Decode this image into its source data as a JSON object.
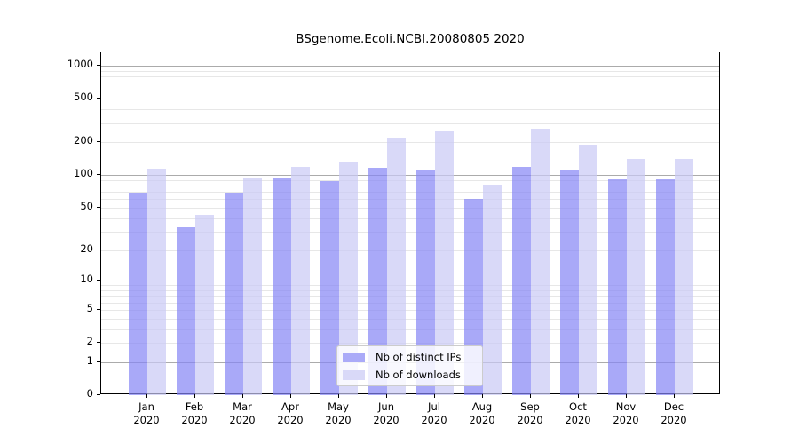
{
  "title": "BSgenome.Ecoli.NCBI.20080805 2020",
  "chart_data": {
    "type": "bar",
    "categories": [
      "Jan",
      "Feb",
      "Mar",
      "Apr",
      "May",
      "Jun",
      "Jul",
      "Aug",
      "Sep",
      "Oct",
      "Nov",
      "Dec"
    ],
    "year": "2020",
    "series": [
      {
        "name": "Nb of distinct IPs",
        "color": "rgba(132,132,245,0.7)",
        "legend_color": "#aaaaf8",
        "values": [
          69,
          33,
          69,
          95,
          88,
          118,
          113,
          60,
          120,
          110,
          92,
          92
        ]
      },
      {
        "name": "Nb of downloads",
        "color": "rgba(201,201,245,0.7)",
        "legend_color": "#d9d9f8",
        "values": [
          114,
          43,
          96,
          120,
          134,
          222,
          257,
          82,
          268,
          191,
          140,
          142
        ]
      }
    ],
    "yscale": "log10(value+1)",
    "yticks": [
      0,
      1,
      2,
      5,
      10,
      20,
      50,
      100,
      200,
      500,
      1000
    ],
    "ylim": [
      0,
      1330
    ],
    "major_gridlines": [
      1,
      10,
      100,
      1000
    ],
    "minor_gridlines": [
      2,
      3,
      4,
      5,
      6,
      7,
      8,
      9,
      20,
      30,
      40,
      50,
      60,
      70,
      80,
      90,
      200,
      300,
      400,
      500,
      600,
      700,
      800,
      900
    ],
    "grid_major_color": "#ababab",
    "grid_minor_color": "#e7e7e7",
    "legend_position": "lower center",
    "legend": {
      "items": [
        "Nb of distinct IPs",
        "Nb of downloads"
      ]
    }
  }
}
